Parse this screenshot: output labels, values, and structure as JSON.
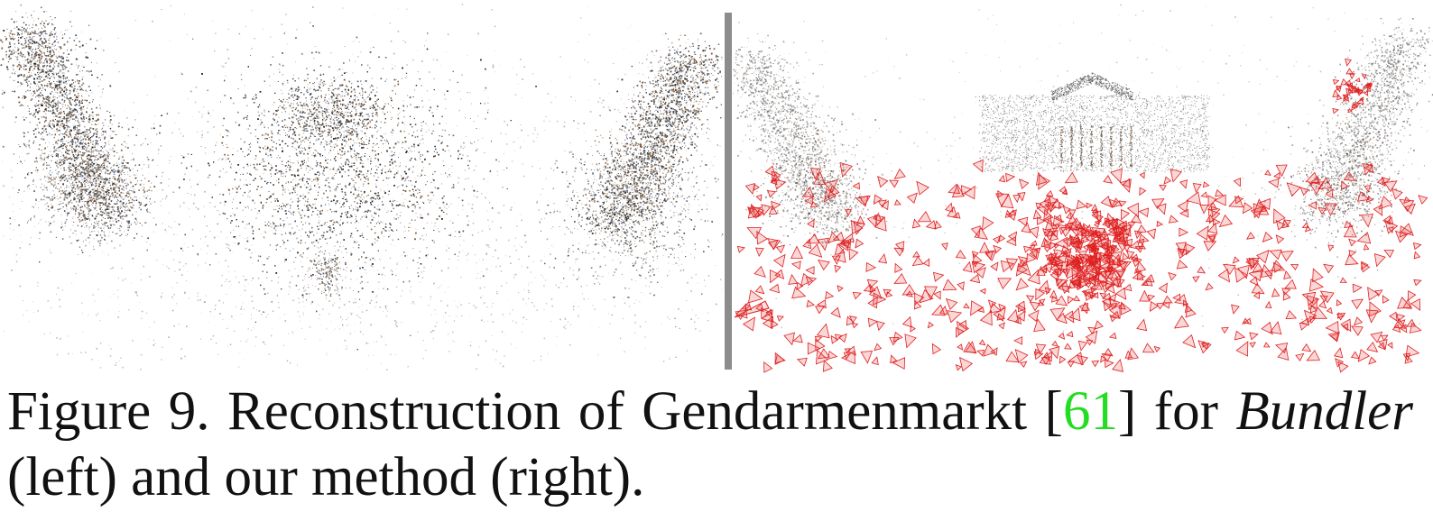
{
  "figure": {
    "left_panel": {
      "description_name": "bundler-reconstruction"
    },
    "right_panel": {
      "description_name": "our-method-reconstruction"
    },
    "colors": {
      "divider": "#8c8c8c",
      "camera": "#e02020",
      "points_dark": "#2a2a2a",
      "points_brown": "#7a5030",
      "points_blue": "#4a5a78"
    }
  },
  "caption": {
    "part1": "Figure 9. Reconstruction of Gendarmenmarkt [",
    "citation": "61",
    "part2": "] for ",
    "emphasis": "Bundler",
    "part3": " (left) and our method (right)."
  }
}
